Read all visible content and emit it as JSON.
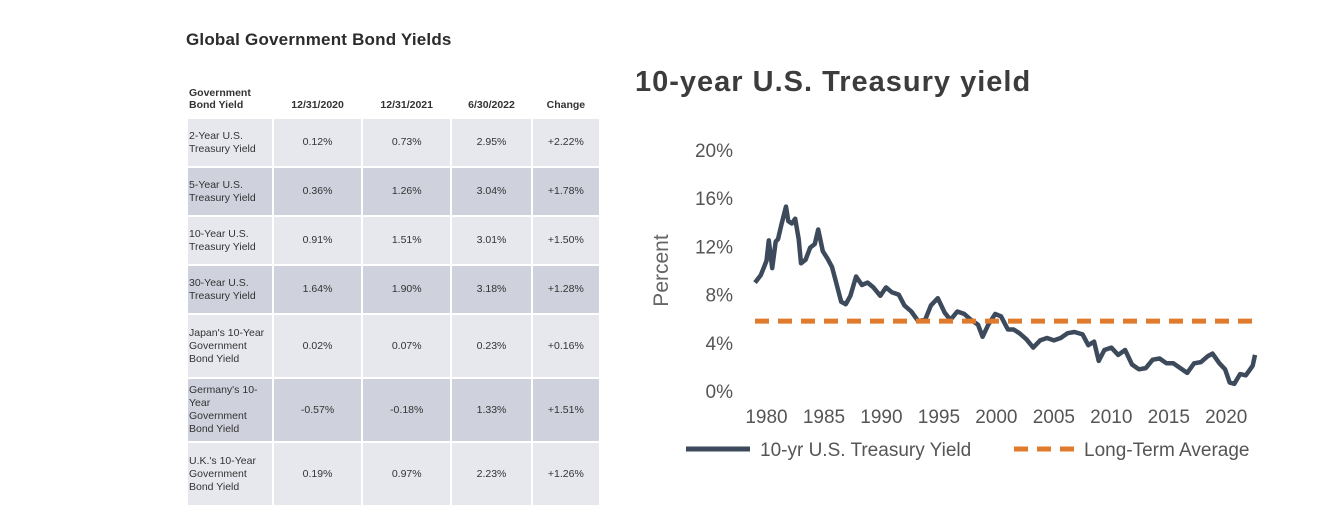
{
  "table": {
    "title": "Global Government Bond Yields",
    "headers": [
      "Government Bond Yield",
      "12/31/2020",
      "12/31/2021",
      "6/30/2022",
      "Change"
    ],
    "rows": [
      [
        "2-Year U.S. Treasury Yield",
        "0.12%",
        "0.73%",
        "2.95%",
        "+2.22%"
      ],
      [
        "5-Year U.S. Treasury Yield",
        "0.36%",
        "1.26%",
        "3.04%",
        "+1.78%"
      ],
      [
        "10-Year U.S. Treasury Yield",
        "0.91%",
        "1.51%",
        "3.01%",
        "+1.50%"
      ],
      [
        "30-Year U.S. Treasury Yield",
        "1.64%",
        "1.90%",
        "3.18%",
        "+1.28%"
      ],
      [
        "Japan's 10-Year Government Bond Yield",
        "0.02%",
        "0.07%",
        "0.23%",
        "+0.16%"
      ],
      [
        "Germany's 10-Year Government Bond Yield",
        "-0.57%",
        "-0.18%",
        "1.33%",
        "+1.51%"
      ],
      [
        "U.K.'s 10-Year Government Bond Yield",
        "0.19%",
        "0.97%",
        "2.23%",
        "+1.26%"
      ]
    ]
  },
  "chart_data": {
    "type": "line",
    "title": "10-year U.S. Treasury yield",
    "ylabel": "Percent",
    "xlabel": "",
    "xlim": [
      1979,
      2022.5
    ],
    "ylim": [
      0,
      20
    ],
    "x_ticks": [
      1980,
      1985,
      1990,
      1995,
      2000,
      2005,
      2010,
      2015,
      2020
    ],
    "y_ticks": [
      0,
      4,
      8,
      12,
      16,
      20
    ],
    "y_tick_labels": [
      "0%",
      "4%",
      "8%",
      "12%",
      "16%",
      "20%"
    ],
    "grid": false,
    "legend_position": "bottom",
    "colors": {
      "yield": "#3d4a5c",
      "average": "#e07b2e"
    },
    "series": [
      {
        "name": "10-yr U.S. Treasury Yield",
        "style": "solid",
        "x": [
          1979.0,
          1979.5,
          1980.0,
          1980.2,
          1980.5,
          1980.8,
          1981.0,
          1981.3,
          1981.7,
          1981.9,
          1982.2,
          1982.5,
          1982.8,
          1983.0,
          1983.4,
          1983.8,
          1984.2,
          1984.5,
          1984.9,
          1985.3,
          1985.7,
          1986.0,
          1986.5,
          1986.9,
          1987.3,
          1987.8,
          1988.3,
          1988.8,
          1989.3,
          1989.9,
          1990.4,
          1990.9,
          1991.5,
          1992.0,
          1992.6,
          1993.2,
          1993.8,
          1994.3,
          1994.9,
          1995.5,
          1996.0,
          1996.6,
          1997.2,
          1997.8,
          1998.4,
          1998.8,
          1999.3,
          1999.9,
          2000.4,
          2001.0,
          2001.5,
          2002.0,
          2002.6,
          2003.2,
          2003.8,
          2004.4,
          2005.0,
          2005.6,
          2006.2,
          2006.8,
          2007.5,
          2008.0,
          2008.5,
          2008.9,
          2009.4,
          2010.0,
          2010.6,
          2011.2,
          2011.8,
          2012.4,
          2013.0,
          2013.6,
          2014.2,
          2014.8,
          2015.4,
          2016.0,
          2016.6,
          2017.2,
          2017.8,
          2018.4,
          2018.8,
          2019.4,
          2019.9,
          2020.3,
          2020.7,
          2021.2,
          2021.7,
          2022.0,
          2022.3,
          2022.5
        ],
        "y": [
          9.0,
          9.6,
          10.8,
          12.5,
          10.2,
          12.4,
          12.6,
          13.8,
          15.3,
          14.1,
          13.9,
          14.3,
          12.6,
          10.6,
          10.9,
          11.9,
          12.2,
          13.4,
          11.6,
          11.0,
          10.3,
          9.2,
          7.4,
          7.2,
          7.9,
          9.5,
          8.8,
          9.0,
          8.6,
          7.9,
          8.6,
          8.2,
          8.0,
          7.1,
          6.6,
          5.8,
          5.9,
          7.1,
          7.7,
          6.5,
          5.9,
          6.6,
          6.4,
          5.9,
          5.5,
          4.5,
          5.5,
          6.4,
          6.2,
          5.1,
          5.1,
          4.8,
          4.3,
          3.6,
          4.2,
          4.4,
          4.2,
          4.4,
          4.8,
          4.9,
          4.7,
          3.8,
          4.1,
          2.5,
          3.4,
          3.6,
          3.0,
          3.4,
          2.2,
          1.8,
          1.9,
          2.6,
          2.7,
          2.3,
          2.3,
          1.9,
          1.5,
          2.3,
          2.4,
          2.9,
          3.1,
          2.3,
          1.8,
          0.7,
          0.6,
          1.4,
          1.3,
          1.7,
          2.1,
          3.0
        ]
      },
      {
        "name": "Long-Term Average",
        "style": "dashed",
        "x": [
          1979.0,
          2022.5
        ],
        "y": [
          5.8,
          5.8
        ]
      }
    ]
  }
}
